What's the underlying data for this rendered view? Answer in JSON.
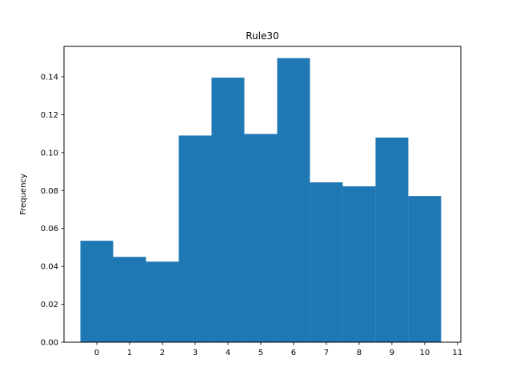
{
  "chart_data": {
    "type": "bar",
    "title": "Rule30",
    "xlabel": "",
    "ylabel": "Frequency",
    "x": [
      0,
      1,
      2,
      3,
      4,
      5,
      6,
      7,
      8,
      9,
      10
    ],
    "values": [
      0.0535,
      0.045,
      0.0425,
      0.109,
      0.1395,
      0.1098,
      0.1498,
      0.0843,
      0.0822,
      0.1079,
      0.0771
    ],
    "xlim": [
      -1,
      11.1
    ],
    "ylim": [
      0,
      0.156
    ],
    "xticks": [
      0,
      1,
      2,
      3,
      4,
      5,
      6,
      7,
      8,
      9,
      10,
      11
    ],
    "xtick_labels": [
      "0",
      "1",
      "2",
      "3",
      "4",
      "5",
      "6",
      "7",
      "8",
      "9",
      "10",
      "11"
    ],
    "yticks": [
      0,
      0.02,
      0.04,
      0.06,
      0.08,
      0.1,
      0.12,
      0.14
    ],
    "ytick_labels": [
      "0.00",
      "0.02",
      "0.04",
      "0.06",
      "0.08",
      "0.10",
      "0.12",
      "0.14"
    ],
    "bar_color": "#1f77b4",
    "grid": false,
    "legend": "none"
  }
}
